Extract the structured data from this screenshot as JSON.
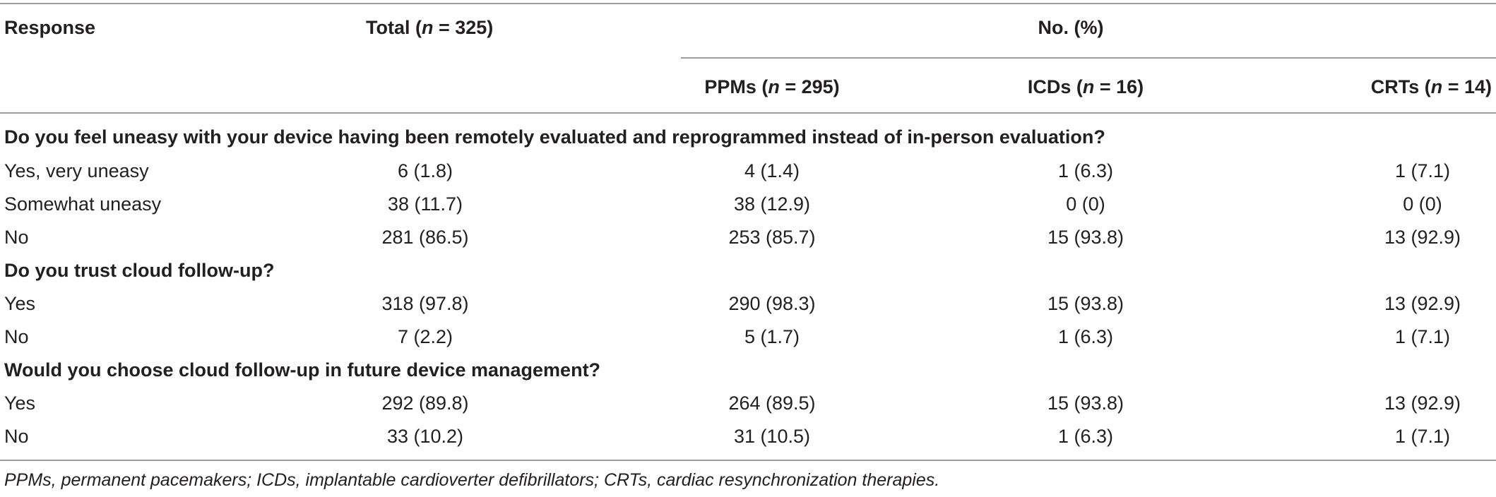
{
  "header": {
    "response": "Response",
    "total_prefix": "Total (",
    "total_n": "n",
    "total_suffix": " = 325)",
    "group": "No. (%)",
    "ppms_prefix": "PPMs (",
    "ppms_n": "n",
    "ppms_suffix": " = 295)",
    "icds_prefix": "ICDs (",
    "icds_n": "n",
    "icds_suffix": " = 16)",
    "crts_prefix": "CRTs (",
    "crts_n": "n",
    "crts_suffix": " = 14)"
  },
  "sections": [
    {
      "question": "Do you feel uneasy with your device having been remotely evaluated and reprogrammed instead of in-person evaluation?",
      "rows": [
        {
          "label": "Yes, very uneasy",
          "total": "6 (1.8)",
          "ppms": "4 (1.4)",
          "icds": "1 (6.3)",
          "crts": "1 (7.1)"
        },
        {
          "label": "Somewhat uneasy",
          "total": "38 (11.7)",
          "ppms": "38 (12.9)",
          "icds": "0 (0)",
          "crts": "0 (0)"
        },
        {
          "label": "No",
          "total": "281 (86.5)",
          "ppms": "253 (85.7)",
          "icds": "15 (93.8)",
          "crts": "13 (92.9)"
        }
      ]
    },
    {
      "question": "Do you trust cloud follow-up?",
      "rows": [
        {
          "label": "Yes",
          "total": "318 (97.8)",
          "ppms": "290 (98.3)",
          "icds": "15 (93.8)",
          "crts": "13 (92.9)"
        },
        {
          "label": "No",
          "total": "7 (2.2)",
          "ppms": "5 (1.7)",
          "icds": "1 (6.3)",
          "crts": "1 (7.1)"
        }
      ]
    },
    {
      "question": "Would you choose cloud follow-up in future device management?",
      "rows": [
        {
          "label": "Yes",
          "total": "292 (89.8)",
          "ppms": "264 (89.5)",
          "icds": "15 (93.8)",
          "crts": "13 (92.9)"
        },
        {
          "label": "No",
          "total": "33 (10.2)",
          "ppms": "31 (10.5)",
          "icds": "1 (6.3)",
          "crts": "1 (7.1)"
        }
      ]
    }
  ],
  "footnote": "PPMs, permanent pacemakers; ICDs, implantable cardioverter defibrillators; CRTs, cardiac resynchronization therapies."
}
